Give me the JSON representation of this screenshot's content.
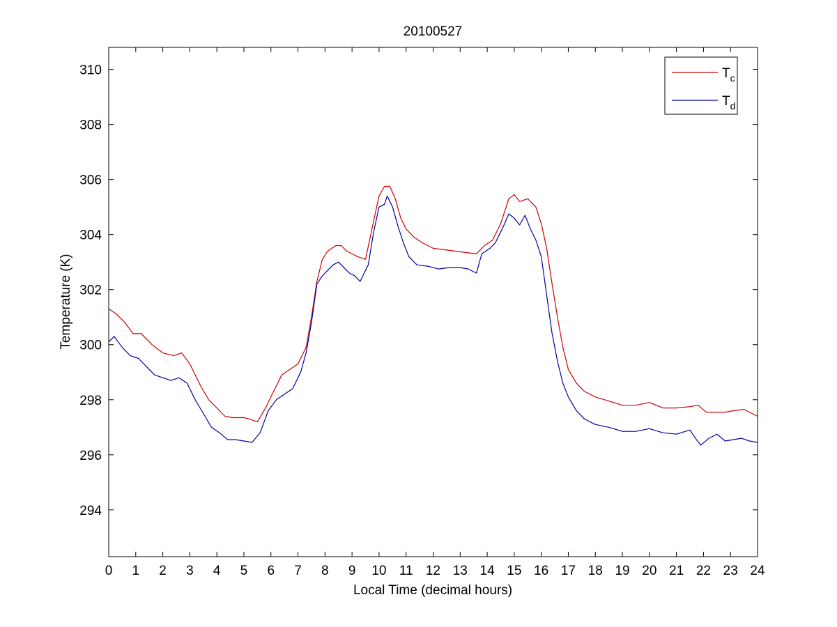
{
  "chart_data": {
    "type": "line",
    "title": "20100527",
    "xlabel": "Local Time (decimal hours)",
    "ylabel": "Temperature (K)",
    "xlim": [
      0,
      24
    ],
    "ylim": [
      292.3,
      310.8
    ],
    "xticks": [
      0,
      1,
      2,
      3,
      4,
      5,
      6,
      7,
      8,
      9,
      10,
      11,
      12,
      13,
      14,
      15,
      16,
      17,
      18,
      19,
      20,
      21,
      22,
      23,
      24
    ],
    "yticks": [
      294,
      296,
      298,
      300,
      302,
      304,
      306,
      308,
      310
    ],
    "grid": false,
    "legend_position": "top-right",
    "series": [
      {
        "name": "T",
        "subscript": "c",
        "color": "#cc0000",
        "points": [
          [
            0,
            301.3
          ],
          [
            0.3,
            301.1
          ],
          [
            0.6,
            300.8
          ],
          [
            0.9,
            300.4
          ],
          [
            1.2,
            300.4
          ],
          [
            1.6,
            300.0
          ],
          [
            2.0,
            299.7
          ],
          [
            2.4,
            299.6
          ],
          [
            2.7,
            299.7
          ],
          [
            3.0,
            299.3
          ],
          [
            3.4,
            298.5
          ],
          [
            3.7,
            298.0
          ],
          [
            4.0,
            297.7
          ],
          [
            4.3,
            297.4
          ],
          [
            4.6,
            297.35
          ],
          [
            5.0,
            297.35
          ],
          [
            5.2,
            297.3
          ],
          [
            5.5,
            297.2
          ],
          [
            5.8,
            297.7
          ],
          [
            6.1,
            298.3
          ],
          [
            6.4,
            298.9
          ],
          [
            6.7,
            299.1
          ],
          [
            7.0,
            299.3
          ],
          [
            7.3,
            299.9
          ],
          [
            7.5,
            301.0
          ],
          [
            7.7,
            302.3
          ],
          [
            7.9,
            303.1
          ],
          [
            8.1,
            303.4
          ],
          [
            8.4,
            303.6
          ],
          [
            8.6,
            303.6
          ],
          [
            8.8,
            303.4
          ],
          [
            9.0,
            303.3
          ],
          [
            9.2,
            303.2
          ],
          [
            9.5,
            303.1
          ],
          [
            9.8,
            304.5
          ],
          [
            10.0,
            305.4
          ],
          [
            10.2,
            305.75
          ],
          [
            10.4,
            305.75
          ],
          [
            10.6,
            305.3
          ],
          [
            10.8,
            304.6
          ],
          [
            11.0,
            304.2
          ],
          [
            11.3,
            303.9
          ],
          [
            11.6,
            303.7
          ],
          [
            12.0,
            303.5
          ],
          [
            12.4,
            303.45
          ],
          [
            12.8,
            303.4
          ],
          [
            13.2,
            303.35
          ],
          [
            13.6,
            303.3
          ],
          [
            13.9,
            303.6
          ],
          [
            14.2,
            303.8
          ],
          [
            14.5,
            304.4
          ],
          [
            14.8,
            305.3
          ],
          [
            15.0,
            305.45
          ],
          [
            15.2,
            305.2
          ],
          [
            15.5,
            305.3
          ],
          [
            15.8,
            305.0
          ],
          [
            16.0,
            304.4
          ],
          [
            16.2,
            303.5
          ],
          [
            16.4,
            302.2
          ],
          [
            16.6,
            301.0
          ],
          [
            16.8,
            299.9
          ],
          [
            17.0,
            299.1
          ],
          [
            17.3,
            298.6
          ],
          [
            17.6,
            298.3
          ],
          [
            18.0,
            298.1
          ],
          [
            18.5,
            297.95
          ],
          [
            19.0,
            297.8
          ],
          [
            19.5,
            297.8
          ],
          [
            20.0,
            297.9
          ],
          [
            20.5,
            297.7
          ],
          [
            21.0,
            297.7
          ],
          [
            21.5,
            297.75
          ],
          [
            21.8,
            297.8
          ],
          [
            22.1,
            297.55
          ],
          [
            22.5,
            297.55
          ],
          [
            22.8,
            297.55
          ],
          [
            23.1,
            297.6
          ],
          [
            23.5,
            297.65
          ],
          [
            24.0,
            297.4
          ]
        ]
      },
      {
        "name": "T",
        "subscript": "d",
        "color": "#00009f",
        "points": [
          [
            0,
            300.1
          ],
          [
            0.2,
            300.3
          ],
          [
            0.5,
            299.9
          ],
          [
            0.8,
            299.6
          ],
          [
            1.1,
            299.5
          ],
          [
            1.4,
            299.2
          ],
          [
            1.7,
            298.9
          ],
          [
            2.0,
            298.8
          ],
          [
            2.3,
            298.7
          ],
          [
            2.6,
            298.8
          ],
          [
            2.9,
            298.6
          ],
          [
            3.2,
            298.0
          ],
          [
            3.5,
            297.5
          ],
          [
            3.8,
            297.0
          ],
          [
            4.1,
            296.8
          ],
          [
            4.4,
            296.55
          ],
          [
            4.7,
            296.55
          ],
          [
            5.0,
            296.5
          ],
          [
            5.3,
            296.45
          ],
          [
            5.6,
            296.8
          ],
          [
            5.9,
            297.6
          ],
          [
            6.2,
            298.0
          ],
          [
            6.5,
            298.2
          ],
          [
            6.8,
            298.4
          ],
          [
            7.1,
            299.0
          ],
          [
            7.3,
            299.7
          ],
          [
            7.5,
            300.8
          ],
          [
            7.7,
            302.2
          ],
          [
            7.9,
            302.5
          ],
          [
            8.1,
            302.7
          ],
          [
            8.3,
            302.9
          ],
          [
            8.5,
            303.0
          ],
          [
            8.7,
            302.8
          ],
          [
            8.9,
            302.6
          ],
          [
            9.1,
            302.5
          ],
          [
            9.3,
            302.3
          ],
          [
            9.6,
            302.9
          ],
          [
            9.8,
            304.1
          ],
          [
            10.0,
            305.0
          ],
          [
            10.2,
            305.1
          ],
          [
            10.3,
            305.4
          ],
          [
            10.5,
            305.0
          ],
          [
            10.7,
            304.3
          ],
          [
            10.9,
            303.7
          ],
          [
            11.1,
            303.2
          ],
          [
            11.4,
            302.9
          ],
          [
            11.8,
            302.85
          ],
          [
            12.2,
            302.75
          ],
          [
            12.6,
            302.8
          ],
          [
            13.0,
            302.8
          ],
          [
            13.3,
            302.75
          ],
          [
            13.6,
            302.6
          ],
          [
            13.8,
            303.3
          ],
          [
            14.1,
            303.5
          ],
          [
            14.3,
            303.7
          ],
          [
            14.6,
            304.3
          ],
          [
            14.8,
            304.75
          ],
          [
            15.0,
            304.6
          ],
          [
            15.2,
            304.35
          ],
          [
            15.4,
            304.7
          ],
          [
            15.6,
            304.2
          ],
          [
            15.8,
            303.8
          ],
          [
            16.0,
            303.2
          ],
          [
            16.2,
            301.8
          ],
          [
            16.4,
            300.4
          ],
          [
            16.6,
            299.4
          ],
          [
            16.8,
            298.6
          ],
          [
            17.0,
            298.1
          ],
          [
            17.3,
            297.6
          ],
          [
            17.6,
            297.3
          ],
          [
            18.0,
            297.1
          ],
          [
            18.5,
            297.0
          ],
          [
            19.0,
            296.85
          ],
          [
            19.5,
            296.85
          ],
          [
            20.0,
            296.95
          ],
          [
            20.5,
            296.8
          ],
          [
            21.0,
            296.75
          ],
          [
            21.5,
            296.9
          ],
          [
            21.7,
            296.6
          ],
          [
            21.9,
            296.35
          ],
          [
            22.2,
            296.6
          ],
          [
            22.5,
            296.75
          ],
          [
            22.8,
            296.5
          ],
          [
            23.1,
            296.55
          ],
          [
            23.4,
            296.6
          ],
          [
            23.7,
            296.5
          ],
          [
            24.0,
            296.45
          ]
        ]
      }
    ]
  }
}
